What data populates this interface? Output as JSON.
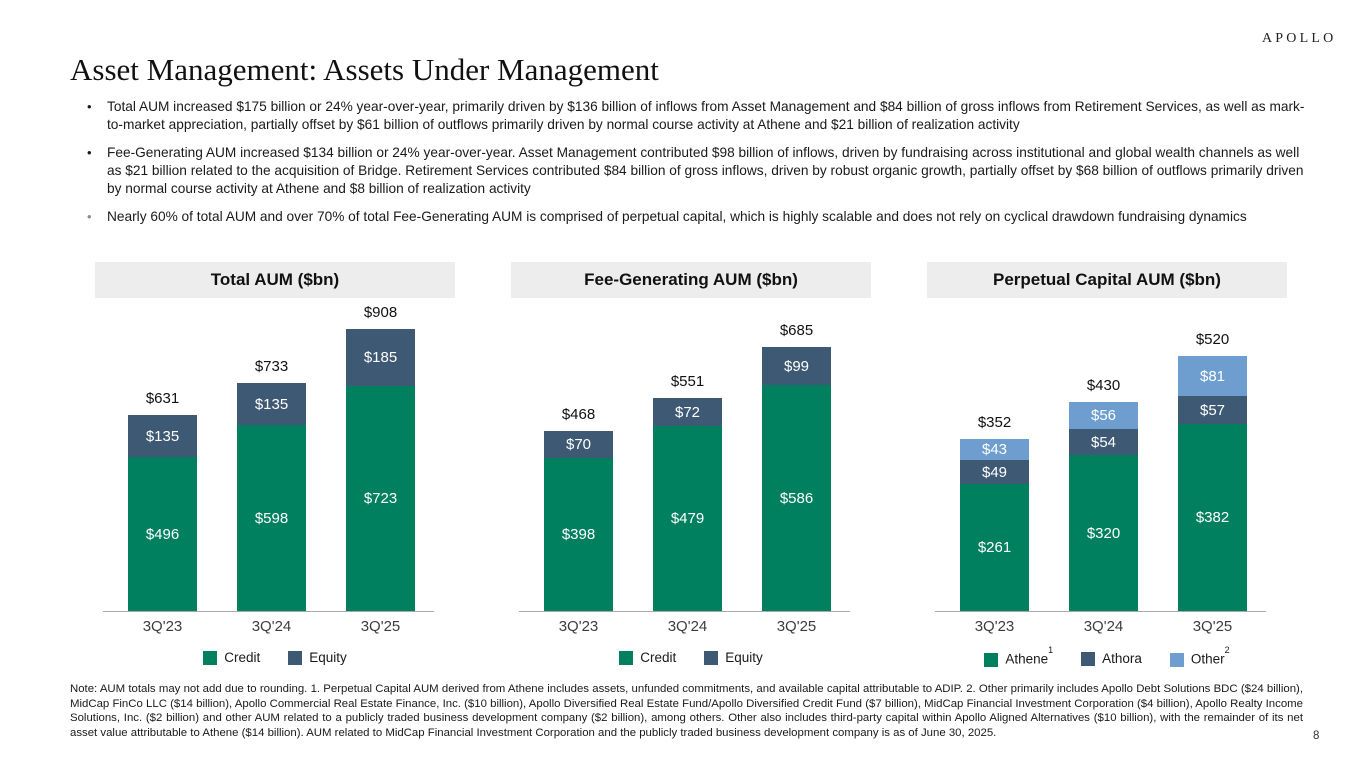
{
  "brand": {
    "logo_text": "APOLLO"
  },
  "page": {
    "title": "Asset Management: Assets Under Management",
    "page_number": "8"
  },
  "bullets": [
    {
      "marker": "•",
      "text": "Total AUM increased $175 billion or 24% year-over-year, primarily driven by $136 billion of inflows from Asset Management and $84 billion of gross inflows from Retirement Services, as well as mark-to-market appreciation, partially offset by $61 billion of outflows primarily driven by normal course activity at Athene and $21 billion of realization activity"
    },
    {
      "marker": "•",
      "text": "Fee-Generating AUM increased $134 billion or 24% year-over-year. Asset Management contributed $98 billion of inflows, driven by fundraising across institutional and global wealth channels as well as $21 billion related to the acquisition of Bridge. Retirement Services contributed $84 billion of gross inflows, driven by robust organic growth, partially offset by $68 billion of outflows primarily driven by normal course activity at Athene and $8 billion of realization activity"
    },
    {
      "marker": "•",
      "text": "Nearly 60% of total AUM and over 70% of total Fee-Generating AUM is comprised of perpetual capital, which is highly scalable and does not rely on cyclical drawdown fundraising dynamics"
    }
  ],
  "chart_data": [
    {
      "type": "bar",
      "stacked": true,
      "title": "Total AUM ($bn)",
      "value_prefix": "$",
      "categories": [
        "3Q'23",
        "3Q'24",
        "3Q'25"
      ],
      "series": [
        {
          "name": "Credit",
          "sup": "",
          "color": "#00805F",
          "values": [
            496,
            598,
            723
          ]
        },
        {
          "name": "Equity",
          "sup": "",
          "color": "#3E5974",
          "values": [
            135,
            135,
            185
          ]
        }
      ],
      "totals": [
        631,
        733,
        908
      ],
      "legend_position": "bottom",
      "grid": false
    },
    {
      "type": "bar",
      "stacked": true,
      "title": "Fee-Generating AUM ($bn)",
      "value_prefix": "$",
      "categories": [
        "3Q'23",
        "3Q'24",
        "3Q'25"
      ],
      "series": [
        {
          "name": "Credit",
          "sup": "",
          "color": "#00805F",
          "values": [
            398,
            479,
            586
          ]
        },
        {
          "name": "Equity",
          "sup": "",
          "color": "#3E5974",
          "values": [
            70,
            72,
            99
          ]
        }
      ],
      "totals": [
        468,
        551,
        685
      ],
      "legend_position": "bottom",
      "grid": false
    },
    {
      "type": "bar",
      "stacked": true,
      "title": "Perpetual Capital AUM ($bn)",
      "value_prefix": "$",
      "categories": [
        "3Q'23",
        "3Q'24",
        "3Q'25"
      ],
      "series": [
        {
          "name": "Athene",
          "sup": "1",
          "color": "#00805F",
          "values": [
            261,
            320,
            382
          ]
        },
        {
          "name": "Athora",
          "sup": "",
          "color": "#3E5974",
          "values": [
            49,
            54,
            57
          ]
        },
        {
          "name": "Other",
          "sup": "2",
          "color": "#6D9ECF",
          "values": [
            43,
            56,
            81
          ]
        }
      ],
      "totals": [
        352,
        430,
        520
      ],
      "legend_position": "bottom",
      "grid": false
    }
  ],
  "colors": {
    "credit_green": "#00805F",
    "equity_slate": "#3E5974",
    "other_light_blue": "#6D9ECF",
    "chart_header_band": "#EDEDED",
    "axis_line": "#A9A9A9"
  },
  "footnote": "Note: AUM totals may not add due to rounding. 1. Perpetual Capital AUM derived from Athene includes assets, unfunded commitments, and available capital attributable to ADIP. 2. Other primarily includes Apollo Debt Solutions BDC ($24 billion), MidCap FinCo LLC ($14 billion), Apollo Commercial Real Estate Finance, Inc. ($10 billion), Apollo Diversified Real Estate Fund/Apollo Diversified Credit Fund ($7 billion), MidCap Financial Investment Corporation ($4 billion), Apollo Realty Income Solutions, Inc. ($2 billion) and other AUM related to a publicly traded business development company ($2 billion), among others. Other also includes third-party capital within Apollo Aligned Alternatives ($10 billion), with the remainder of its net asset value attributable to Athene ($14 billion). AUM related to MidCap Financial Investment Corporation and the publicly traded business development company is as of June 30, 2025."
}
